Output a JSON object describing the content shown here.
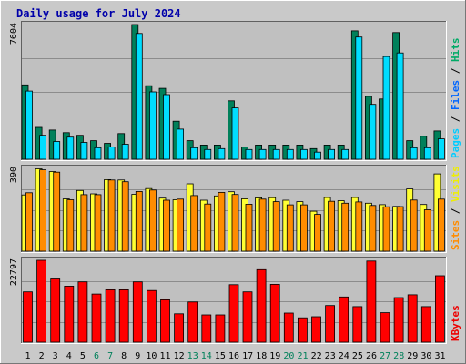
{
  "chart_data": {
    "title": "Daily usage for July 2024",
    "type": "bar",
    "categories": [
      "1",
      "2",
      "3",
      "4",
      "5",
      "6",
      "7",
      "8",
      "9",
      "10",
      "11",
      "12",
      "13",
      "14",
      "15",
      "16",
      "17",
      "18",
      "19",
      "20",
      "21",
      "22",
      "23",
      "24",
      "25",
      "26",
      "27",
      "28",
      "29",
      "30",
      "31"
    ],
    "weekend_days": [
      "6",
      "7",
      "13",
      "14",
      "20",
      "21",
      "27",
      "28"
    ],
    "panels": [
      {
        "id": "hits-files-pages",
        "max_label": "7604",
        "ymax": 7604,
        "axis_labels": [
          {
            "text": "Pages",
            "color": "#00ccff"
          },
          {
            "text": "Files",
            "color": "#0066ff"
          },
          {
            "text": "Hits",
            "color": "#00aa66"
          }
        ],
        "series": [
          {
            "name": "Hits",
            "color": "#00805a",
            "values": [
              4200,
              1800,
              1650,
              1500,
              1350,
              1050,
              900,
              1450,
              7604,
              4150,
              4000,
              2150,
              1050,
              800,
              800,
              3300,
              700,
              800,
              800,
              800,
              800,
              600,
              800,
              800,
              7250,
              3550,
              3400,
              7150,
              1050,
              1300,
              1600
            ]
          },
          {
            "name": "Files",
            "color": "#00ddff",
            "values": [
              3850,
              1350,
              1000,
              1250,
              950,
              650,
              700,
              850,
              7100,
              3800,
              3650,
              1700,
              650,
              550,
              600,
              2900,
              550,
              550,
              550,
              550,
              550,
              400,
              550,
              550,
              6900,
              3100,
              5800,
              6000,
              650,
              650,
              1150
            ]
          }
        ]
      },
      {
        "id": "visits-sites",
        "max_label": "390",
        "ymax": 390,
        "axis_labels": [
          {
            "text": "Sites",
            "color": "#ff8c00"
          },
          {
            "text": "Visits",
            "color": "#eeee00"
          }
        ],
        "series": [
          {
            "name": "Visits",
            "color": "#ffff33",
            "values": [
              265,
              388,
              375,
              246,
              286,
              270,
              337,
              335,
              268,
              295,
              250,
              242,
              317,
              240,
              260,
              280,
              247,
              251,
              252,
              240,
              233,
              188,
              253,
              238,
              253,
              226,
              219,
              211,
              293,
              220,
              364
            ]
          },
          {
            "name": "Sites",
            "color": "#ff8c00",
            "values": [
              275,
              383,
              372,
              242,
              266,
              266,
              335,
              327,
              281,
              288,
              240,
              245,
              262,
              222,
              277,
              267,
              221,
              245,
              233,
              218,
              218,
              173,
              235,
              226,
              232,
              215,
              209,
              210,
              241,
              195,
              245
            ]
          }
        ]
      },
      {
        "id": "kbytes",
        "max_label": "22797",
        "ymax": 22797,
        "axis_labels": [
          {
            "text": "KBytes",
            "color": "#ee0000"
          }
        ],
        "series": [
          {
            "name": "KBytes",
            "color": "#ff0000",
            "values": [
              14000,
              22797,
              17600,
              15600,
              16800,
              13400,
              14600,
              14600,
              16800,
              14400,
              11800,
              7900,
              11200,
              7600,
              7600,
              16000,
              14000,
              20200,
              16100,
              8100,
              6800,
              7100,
              10200,
              12600,
              9900,
              22600,
              8200,
              12400,
              13200,
              9900,
              18500
            ]
          }
        ]
      }
    ]
  }
}
